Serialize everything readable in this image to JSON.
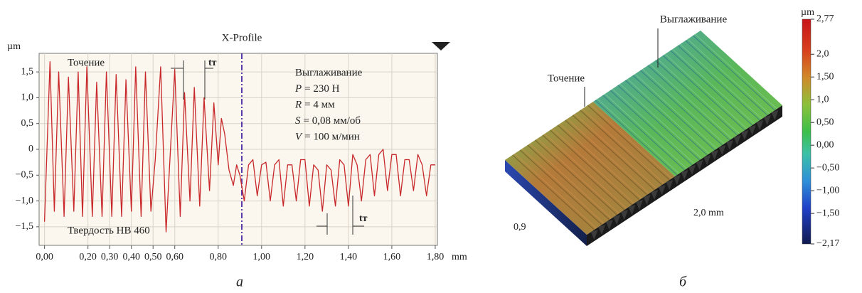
{
  "chart_data": [
    {
      "type": "line",
      "title": "X-Profile",
      "y_unit": "µm",
      "x_unit": "mm",
      "x": [
        0.0,
        0.025,
        0.045,
        0.065,
        0.09,
        0.11,
        0.135,
        0.155,
        0.175,
        0.195,
        0.22,
        0.24,
        0.265,
        0.285,
        0.31,
        0.33,
        0.355,
        0.375,
        0.4,
        0.42,
        0.445,
        0.465,
        0.49,
        0.51,
        0.535,
        0.56,
        0.6,
        0.625,
        0.645,
        0.67,
        0.69,
        0.715,
        0.735,
        0.76,
        0.78,
        0.8,
        0.815,
        0.83,
        0.85,
        0.87,
        0.885,
        0.9,
        0.92,
        0.94,
        0.96,
        0.98,
        1.0,
        1.02,
        1.04,
        1.06,
        1.08,
        1.1,
        1.12,
        1.14,
        1.16,
        1.18,
        1.2,
        1.22,
        1.24,
        1.26,
        1.28,
        1.3,
        1.32,
        1.34,
        1.36,
        1.38,
        1.4,
        1.42,
        1.44,
        1.46,
        1.48,
        1.5,
        1.52,
        1.54,
        1.56,
        1.58,
        1.6,
        1.62,
        1.64,
        1.66,
        1.68,
        1.7,
        1.72,
        1.74,
        1.76,
        1.78,
        1.8
      ],
      "values": [
        -1.4,
        1.7,
        -1.2,
        1.5,
        -1.3,
        1.4,
        -1.2,
        1.5,
        -1.3,
        1.6,
        -1.3,
        1.3,
        -1.3,
        1.5,
        -1.3,
        1.45,
        -1.3,
        1.35,
        -1.2,
        1.6,
        -1.3,
        1.5,
        -1.2,
        -0.2,
        1.6,
        -1.6,
        1.55,
        -1.3,
        1.1,
        -1.0,
        1.2,
        -1.1,
        1.0,
        -0.8,
        0.9,
        -0.3,
        0.6,
        0.3,
        -0.4,
        -0.7,
        -0.3,
        -0.5,
        -1.0,
        -0.3,
        -0.2,
        -0.9,
        -0.3,
        -0.25,
        -1.0,
        -0.3,
        -0.2,
        -1.1,
        -0.3,
        -0.3,
        -1.0,
        -0.2,
        -0.2,
        -1.1,
        -0.3,
        -0.4,
        -1.2,
        -0.3,
        -0.4,
        -1.1,
        -0.2,
        -0.3,
        -1.1,
        -0.1,
        -0.3,
        -1.0,
        -0.2,
        -0.1,
        -0.9,
        -0.1,
        0.0,
        -0.8,
        -0.1,
        -0.1,
        -0.9,
        -0.2,
        -0.2,
        -0.8,
        -0.1,
        -0.3,
        -0.9,
        -0.3,
        -0.3
      ],
      "color": "#c8282a",
      "xlim": [
        -0.025,
        1.81
      ],
      "ylim": [
        -1.86,
        1.86
      ],
      "xticks": [
        {
          "value": 0.0,
          "label": "0,00"
        },
        {
          "value": 0.2,
          "label": "0,20"
        },
        {
          "value": 0.3,
          "label": "0,30"
        },
        {
          "value": 0.4,
          "label": "0,40"
        },
        {
          "value": 0.5,
          "label": "0,50"
        },
        {
          "value": 0.6,
          "label": "0,60"
        },
        {
          "value": 0.8,
          "label": "0,80"
        },
        {
          "value": 1.0,
          "label": "1,00"
        },
        {
          "value": 1.2,
          "label": "1,20"
        },
        {
          "value": 1.4,
          "label": "1,40"
        },
        {
          "value": 1.6,
          "label": "1,60"
        },
        {
          "value": 1.8,
          "label": "1,80"
        }
      ],
      "yticks": [
        {
          "value": 1.5,
          "label": "1,5"
        },
        {
          "value": 1.0,
          "label": "1,0"
        },
        {
          "value": 0.5,
          "label": "0,5"
        },
        0,
        {
          "value": -0.5,
          "label": "−0,5"
        },
        {
          "value": -1.0,
          "label": "−1,0"
        },
        {
          "value": -1.5,
          "label": "−1,5"
        }
      ],
      "grid": true,
      "annotations": {
        "left_region": "Точение",
        "right_region": "Выглаживание",
        "hardness": "Твердость HB 460",
        "period": "tт"
      },
      "parameters": [
        {
          "symbol": "P",
          "text": "= 230 Н"
        },
        {
          "symbol": "R",
          "text": "= 4 мм"
        },
        {
          "symbol": "S",
          "text": "= 0,08 мм/об"
        },
        {
          "symbol": "V",
          "text": "= 100 м/мин"
        }
      ],
      "panel_label": "а"
    },
    {
      "type": "surface",
      "annotations": {
        "left_region": "Точение",
        "right_region": "Выглаживание",
        "width": "0,9",
        "length": "2,0 mm"
      },
      "colorbar": {
        "unit": "µm",
        "lim": [
          -2.17,
          2.77
        ],
        "ticks": [
          {
            "value": 2.77,
            "label": "2,77"
          },
          {
            "value": 2.0,
            "label": "2,0"
          },
          {
            "value": 1.5,
            "label": "1,50"
          },
          {
            "value": 1.0,
            "label": "1,0"
          },
          {
            "value": 0.5,
            "label": "0,50"
          },
          {
            "value": 0.0,
            "label": "0,00"
          },
          {
            "value": -0.5,
            "label": "−0,50"
          },
          {
            "value": -1.0,
            "label": "−1,00"
          },
          {
            "value": -1.5,
            "label": "−1,50"
          },
          {
            "value": -2.17,
            "label": "−2,17"
          }
        ]
      },
      "panel_label": "б"
    }
  ]
}
